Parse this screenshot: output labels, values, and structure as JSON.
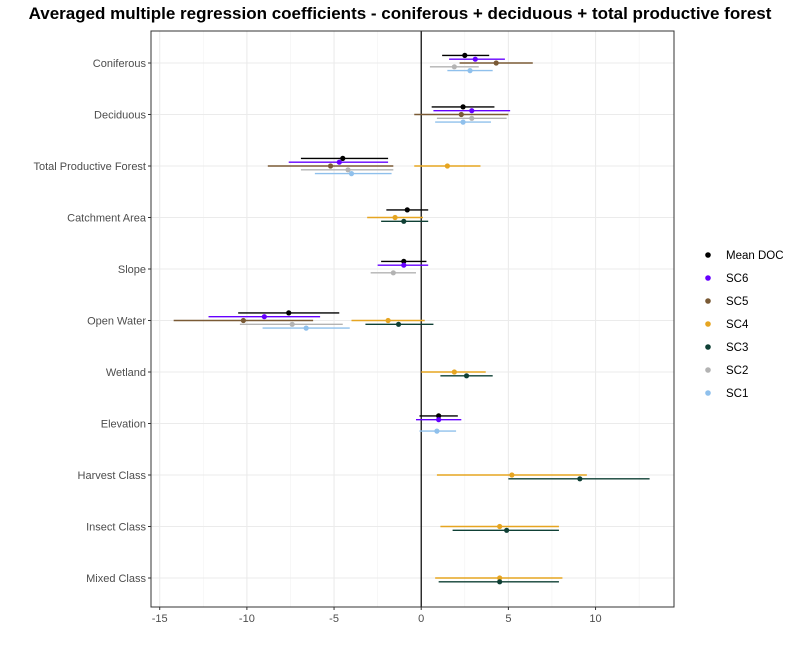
{
  "chart_data": {
    "type": "forest",
    "title": "Averaged multiple regression coefficients - coniferous + deciduous + total productive forest",
    "xlabel": "",
    "ylabel": "",
    "xlim": [
      -15.5,
      14.5
    ],
    "x_ticks": [
      -15,
      -10,
      -5,
      0,
      5,
      10
    ],
    "x_tick_labels": [
      "-15",
      "-10",
      "-5",
      "0",
      "5",
      "10"
    ],
    "reference_line": 0,
    "grid": true,
    "legend_position": "right",
    "categories": [
      "Coniferous",
      "Deciduous",
      "Total Productive Forest",
      "Catchment Area",
      "Slope",
      "Open Water",
      "Wetland",
      "Elevation",
      "Harvest Class",
      "Insect Class",
      "Mixed Class"
    ],
    "series": [
      {
        "name": "Mean DOC",
        "color": "#000000",
        "offset": -2,
        "points": [
          {
            "category": "Coniferous",
            "estimate": 2.5,
            "low": 1.2,
            "high": 3.9
          },
          {
            "category": "Deciduous",
            "estimate": 2.4,
            "low": 0.6,
            "high": 4.2
          },
          {
            "category": "Total Productive Forest",
            "estimate": -4.5,
            "low": -6.9,
            "high": -1.9
          },
          {
            "category": "Catchment Area",
            "estimate": -0.8,
            "low": -2.0,
            "high": 0.4
          },
          {
            "category": "Slope",
            "estimate": -1.0,
            "low": -2.3,
            "high": 0.3
          },
          {
            "category": "Open Water",
            "estimate": -7.6,
            "low": -10.5,
            "high": -4.7
          },
          {
            "category": "Elevation",
            "estimate": 1.0,
            "low": -0.1,
            "high": 2.1
          }
        ]
      },
      {
        "name": "SC6",
        "color": "#6600ff",
        "offset": -1,
        "points": [
          {
            "category": "Coniferous",
            "estimate": 3.1,
            "low": 1.6,
            "high": 4.8
          },
          {
            "category": "Deciduous",
            "estimate": 2.9,
            "low": 0.7,
            "high": 5.1
          },
          {
            "category": "Total Productive Forest",
            "estimate": -4.7,
            "low": -7.6,
            "high": -1.9
          },
          {
            "category": "Slope",
            "estimate": -1.0,
            "low": -2.5,
            "high": 0.4
          },
          {
            "category": "Open Water",
            "estimate": -9.0,
            "low": -12.2,
            "high": -5.8
          },
          {
            "category": "Elevation",
            "estimate": 1.0,
            "low": -0.3,
            "high": 2.3
          }
        ]
      },
      {
        "name": "SC5",
        "color": "#7a5a35",
        "offset": 0,
        "points": [
          {
            "category": "Coniferous",
            "estimate": 4.3,
            "low": 2.2,
            "high": 6.4
          },
          {
            "category": "Deciduous",
            "estimate": 2.3,
            "low": -0.4,
            "high": 5.0
          },
          {
            "category": "Total Productive Forest",
            "estimate": -5.2,
            "low": -8.8,
            "high": -1.6
          },
          {
            "category": "Open Water",
            "estimate": -10.2,
            "low": -14.2,
            "high": -6.2
          }
        ]
      },
      {
        "name": "SC4",
        "color": "#e6a521",
        "offset": 0,
        "points": [
          {
            "category": "Total Productive Forest",
            "estimate": 1.5,
            "low": -0.4,
            "high": 3.4
          },
          {
            "category": "Catchment Area",
            "estimate": -1.5,
            "low": -3.1,
            "high": 0.1
          },
          {
            "category": "Open Water",
            "estimate": -1.9,
            "low": -4.0,
            "high": 0.2
          },
          {
            "category": "Wetland",
            "estimate": 1.9,
            "low": 0.0,
            "high": 3.7
          },
          {
            "category": "Harvest Class",
            "estimate": 5.2,
            "low": 0.9,
            "high": 9.5
          },
          {
            "category": "Insect Class",
            "estimate": 4.5,
            "low": 1.1,
            "high": 7.9
          },
          {
            "category": "Mixed Class",
            "estimate": 4.5,
            "low": 0.8,
            "high": 8.1
          }
        ]
      },
      {
        "name": "SC3",
        "color": "#0f4035",
        "offset": 1,
        "points": [
          {
            "category": "Catchment Area",
            "estimate": -1.0,
            "low": -2.3,
            "high": 0.4
          },
          {
            "category": "Open Water",
            "estimate": -1.3,
            "low": -3.2,
            "high": 0.7
          },
          {
            "category": "Wetland",
            "estimate": 2.6,
            "low": 1.1,
            "high": 4.1
          },
          {
            "category": "Harvest Class",
            "estimate": 9.1,
            "low": 5.0,
            "high": 13.1
          },
          {
            "category": "Insect Class",
            "estimate": 4.9,
            "low": 1.8,
            "high": 7.9
          },
          {
            "category": "Mixed Class",
            "estimate": 4.5,
            "low": 1.0,
            "high": 7.9
          }
        ]
      },
      {
        "name": "SC2",
        "color": "#b3b3b3",
        "offset": 1,
        "points": [
          {
            "category": "Coniferous",
            "estimate": 1.9,
            "low": 0.5,
            "high": 3.3
          },
          {
            "category": "Deciduous",
            "estimate": 2.9,
            "low": 0.9,
            "high": 4.9
          },
          {
            "category": "Total Productive Forest",
            "estimate": -4.2,
            "low": -6.9,
            "high": -1.6
          },
          {
            "category": "Slope",
            "estimate": -1.6,
            "low": -2.9,
            "high": -0.3
          },
          {
            "category": "Open Water",
            "estimate": -7.4,
            "low": -10.4,
            "high": -4.5
          }
        ]
      },
      {
        "name": "SC1",
        "color": "#8fc0ec",
        "offset": 2,
        "points": [
          {
            "category": "Coniferous",
            "estimate": 2.8,
            "low": 1.5,
            "high": 4.1
          },
          {
            "category": "Deciduous",
            "estimate": 2.4,
            "low": 0.8,
            "high": 4.0
          },
          {
            "category": "Total Productive Forest",
            "estimate": -4.0,
            "low": -6.1,
            "high": -1.7
          },
          {
            "category": "Open Water",
            "estimate": -6.6,
            "low": -9.1,
            "high": -4.1
          },
          {
            "category": "Elevation",
            "estimate": 0.9,
            "low": -0.1,
            "high": 2.0
          }
        ]
      }
    ]
  }
}
